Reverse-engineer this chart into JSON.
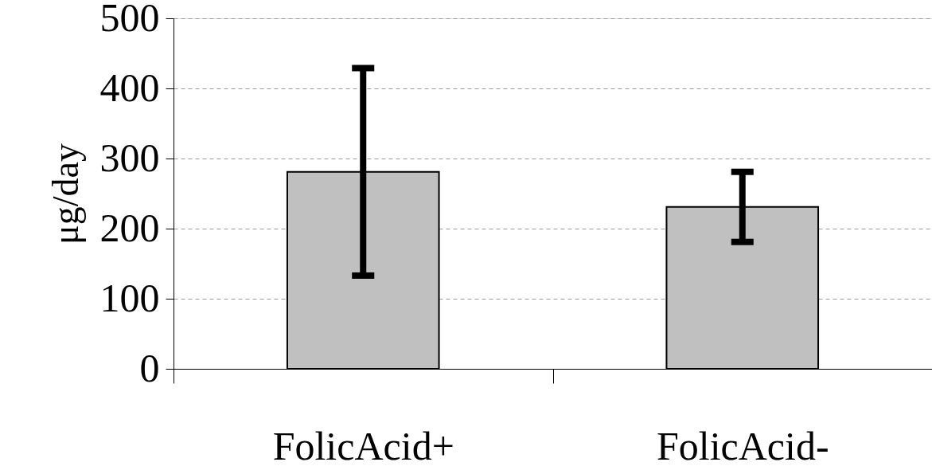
{
  "chart_data": {
    "type": "bar",
    "ylabel": "μg/day",
    "categories": [
      "FolicAcid+",
      "FolicAcid-"
    ],
    "values": [
      281,
      231
    ],
    "errors": [
      148,
      50
    ],
    "color": "#c0c0c0",
    "ylim": [
      0,
      500
    ],
    "yticks": [
      0,
      100,
      200,
      300,
      400,
      500
    ],
    "grid": "y"
  }
}
